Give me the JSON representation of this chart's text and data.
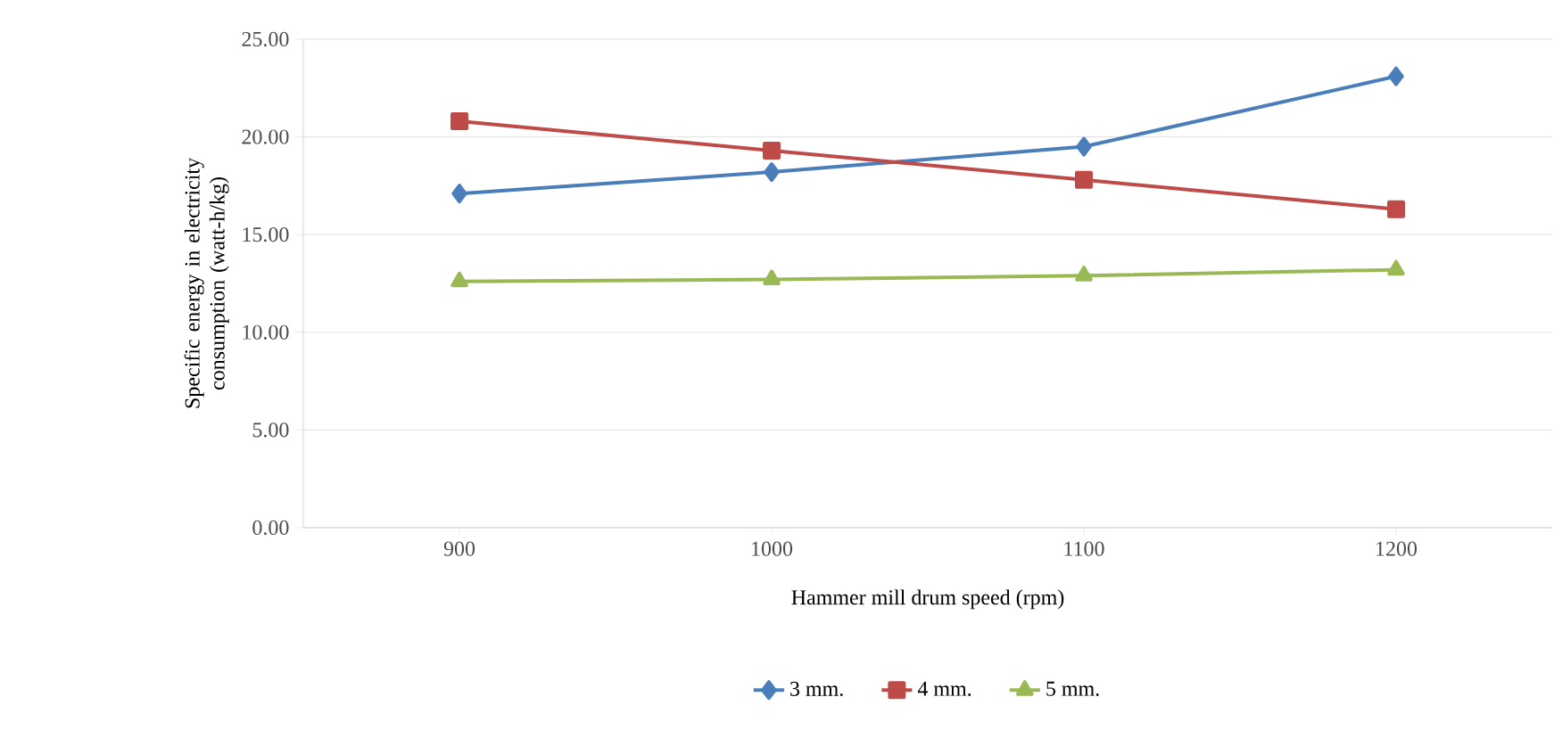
{
  "chart_data": {
    "type": "line",
    "xlabel": "Hammer mill drum speed (rpm)",
    "ylabel": "Specific energy in electricity consumption (watt-h/kg)",
    "categories": [
      "900",
      "1000",
      "1100",
      "1200"
    ],
    "series": [
      {
        "name": "3 mm.",
        "color": "#4a7ebb",
        "marker": "diamond",
        "values": [
          17.1,
          18.2,
          19.5,
          23.1
        ]
      },
      {
        "name": "4 mm.",
        "color": "#be4b48",
        "marker": "square",
        "values": [
          20.8,
          19.3,
          17.8,
          16.3
        ]
      },
      {
        "name": "5 mm.",
        "color": "#98b954",
        "marker": "triangle",
        "values": [
          12.6,
          12.7,
          12.9,
          13.2
        ]
      }
    ],
    "ylim": [
      0,
      25
    ],
    "yticks": [
      {
        "value": 0,
        "label": "0.00"
      },
      {
        "value": 5,
        "label": "5.00"
      },
      {
        "value": 10,
        "label": "10.00"
      },
      {
        "value": 15,
        "label": "15.00"
      },
      {
        "value": 20,
        "label": "20.00"
      },
      {
        "value": 25,
        "label": "25.00"
      }
    ],
    "grid": "y",
    "legend": "bottom"
  }
}
